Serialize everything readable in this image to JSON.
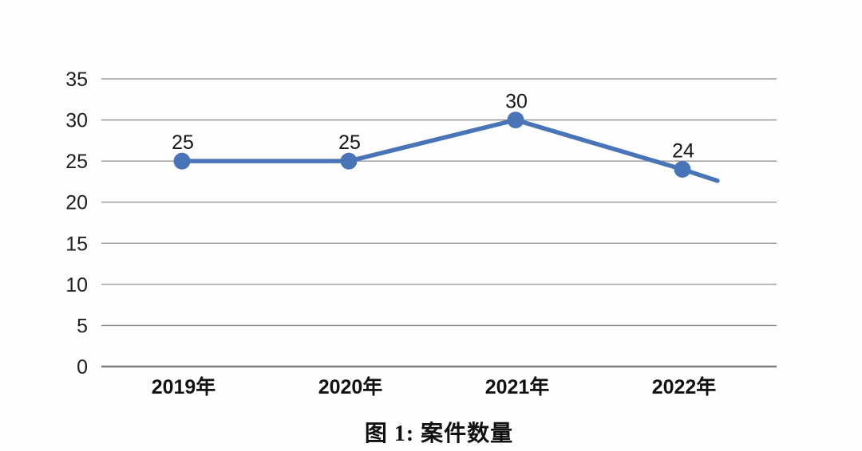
{
  "page": {
    "background_color": "#fefefe",
    "caption": "图 1: 案件数量"
  },
  "chart_data": {
    "type": "line",
    "title": "",
    "caption": "图 1: 案件数量",
    "categories": [
      "2019年",
      "2020年",
      "2021年",
      "2022年"
    ],
    "series": [
      {
        "name": "案件数量",
        "values": [
          25,
          25,
          30,
          24
        ]
      }
    ],
    "data_labels": [
      "25",
      "25",
      "30",
      "24"
    ],
    "y_ticks": [
      0,
      5,
      10,
      15,
      20,
      25,
      30,
      35
    ],
    "ylim": [
      0,
      35
    ],
    "xlabel": "",
    "ylabel": "",
    "grid": true,
    "legend": "none",
    "line_color": "#4a74b8",
    "marker_color": "#4a74b8",
    "gridline_color": "#8c8c8c",
    "axis_line_color": "#7d7d7d",
    "label_color": "#1a1a1a",
    "extension_point": {
      "index": 3.21,
      "value": 22.6
    }
  }
}
